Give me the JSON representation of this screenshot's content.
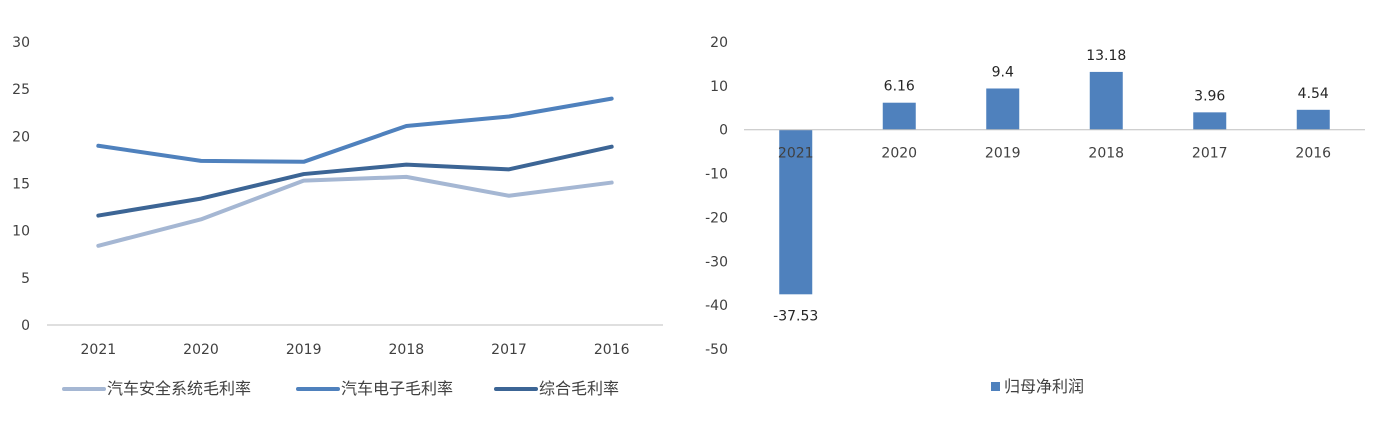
{
  "colors": {
    "safety": "#a5b7d3",
    "electronics": "#4f81bd",
    "overall": "#3c6595",
    "profit": "#4f81bd",
    "axis": "#bfbfbf",
    "text": "#404040"
  },
  "chart_data": [
    {
      "type": "line",
      "categories": [
        "2021",
        "2020",
        "2019",
        "2018",
        "2017",
        "2016"
      ],
      "series": [
        {
          "name": "汽车安全系统毛利率",
          "color_key": "safety",
          "values": [
            8.4,
            11.2,
            15.3,
            15.7,
            13.7,
            15.1
          ]
        },
        {
          "name": "汽车电子毛利率",
          "color_key": "electronics",
          "values": [
            19.0,
            17.4,
            17.3,
            21.1,
            22.1,
            24.0
          ]
        },
        {
          "name": "综合毛利率",
          "color_key": "overall",
          "values": [
            11.6,
            13.4,
            16.0,
            17.0,
            16.5,
            18.9
          ]
        }
      ],
      "ylim": [
        0,
        30
      ],
      "yticks": [
        "0",
        "5",
        "10",
        "15",
        "20",
        "25",
        "30"
      ],
      "ytick_values": [
        0,
        5,
        10,
        15,
        20,
        25,
        30
      ],
      "grid": false,
      "legend_position": "bottom"
    },
    {
      "type": "bar",
      "categories": [
        "2021",
        "2020",
        "2019",
        "2018",
        "2017",
        "2016"
      ],
      "series": [
        {
          "name": "归母净利润",
          "color_key": "profit",
          "values": [
            -37.53,
            6.16,
            9.4,
            13.18,
            3.96,
            4.54
          ]
        }
      ],
      "data_labels": [
        "-37.53",
        "6.16",
        "9.4",
        "13.18",
        "3.96",
        "4.54"
      ],
      "ylim": [
        -50,
        20
      ],
      "yticks": [
        "-50",
        "-40",
        "-30",
        "-20",
        "-10",
        "0",
        "10",
        "20"
      ],
      "ytick_values": [
        -50,
        -40,
        -30,
        -20,
        -10,
        0,
        10,
        20
      ],
      "grid": false,
      "legend_position": "bottom"
    }
  ]
}
